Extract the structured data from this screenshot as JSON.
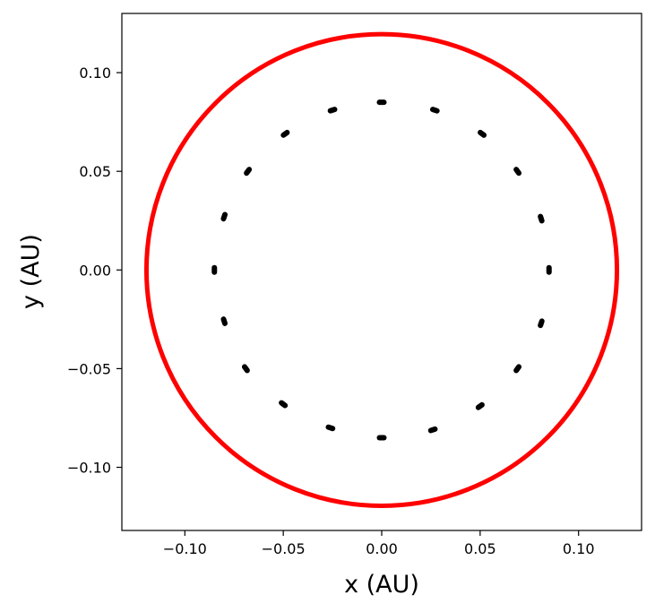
{
  "chart_data": {
    "type": "scatter",
    "title": "",
    "xlabel": "x (AU)",
    "ylabel": "y (AU)",
    "xlim": [
      -0.132,
      0.132
    ],
    "ylim": [
      -0.132,
      0.13
    ],
    "xticks": [
      -0.1,
      -0.05,
      0.0,
      0.05,
      0.1
    ],
    "yticks": [
      -0.1,
      -0.05,
      0.0,
      0.05,
      0.1
    ],
    "xtick_labels": [
      "−0.10",
      "−0.05",
      "0.00",
      "0.05",
      "0.10"
    ],
    "ytick_labels": [
      "−0.10",
      "−0.05",
      "0.00",
      "0.05",
      "0.10"
    ],
    "grid": false,
    "legend": false,
    "series": [
      {
        "kind": "line",
        "color": "#ff0000",
        "shape": "circle",
        "center": [
          0.0,
          0.0
        ],
        "radius": 0.1195
      },
      {
        "kind": "points",
        "color": "#000000",
        "points": [
          [
            0.0,
            0.085
          ],
          [
            0.027,
            0.081
          ],
          [
            0.051,
            0.069
          ],
          [
            0.069,
            0.05
          ],
          [
            0.081,
            0.026
          ],
          [
            0.085,
            0.0
          ],
          [
            0.081,
            -0.027
          ],
          [
            0.069,
            -0.05
          ],
          [
            0.05,
            -0.069
          ],
          [
            0.026,
            -0.081
          ],
          [
            0.0,
            -0.085
          ],
          [
            -0.026,
            -0.08
          ],
          [
            -0.05,
            -0.068
          ],
          [
            -0.069,
            -0.05
          ],
          [
            -0.08,
            -0.026
          ],
          [
            -0.085,
            0.0
          ],
          [
            -0.08,
            0.027
          ],
          [
            -0.068,
            0.05
          ],
          [
            -0.049,
            0.069
          ],
          [
            -0.025,
            0.081
          ]
        ]
      }
    ]
  }
}
